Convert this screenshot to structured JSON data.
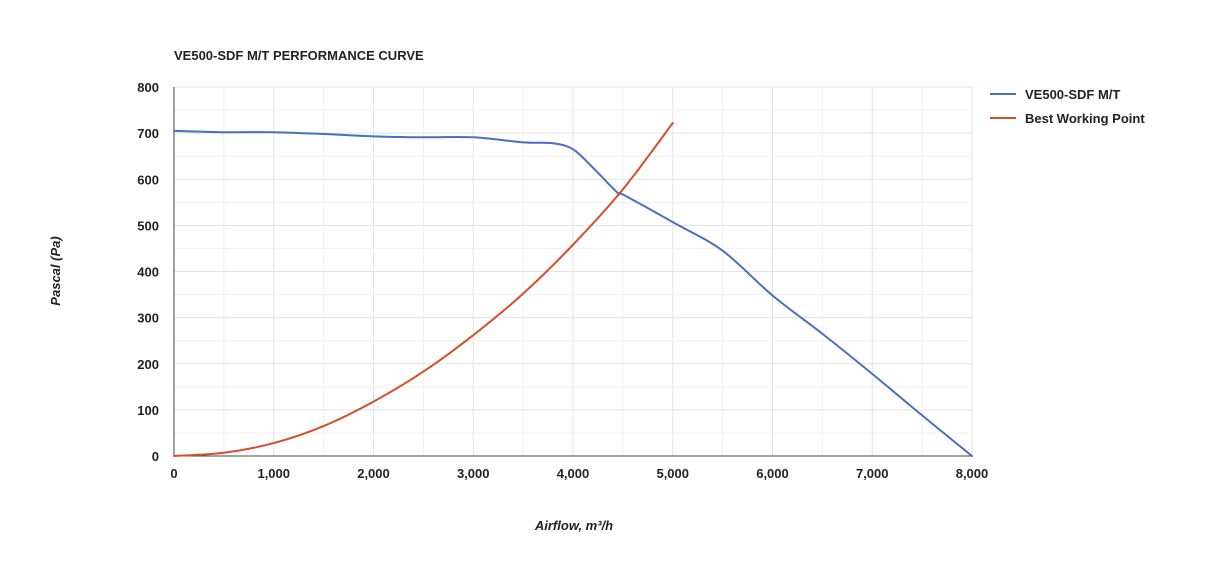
{
  "chart_data": {
    "type": "line",
    "title": "VE500-SDF M/T PERFORMANCE CURVE",
    "xlabel": "Airflow, m³/h",
    "ylabel": "Pascal (Pa)",
    "xlim": [
      0,
      8000
    ],
    "ylim": [
      0,
      800
    ],
    "x_ticks": [
      "0",
      "1,000",
      "2,000",
      "3,000",
      "4,000",
      "5,000",
      "6,000",
      "7,000",
      "8,000"
    ],
    "y_ticks": [
      "0",
      "100",
      "200",
      "300",
      "400",
      "500",
      "600",
      "700",
      "800"
    ],
    "grid": true,
    "legend_position": "right",
    "series": [
      {
        "name": "VE500-SDF M/T",
        "color": "#4a6fc0",
        "x": [
          0,
          500,
          1000,
          1500,
          2000,
          2500,
          3000,
          3500,
          3800,
          4000,
          4200,
          4450,
          4500,
          5000,
          5500,
          6000,
          6500,
          7000,
          7500,
          8000
        ],
        "y": [
          705,
          702,
          702,
          698,
          693,
          691,
          691,
          680,
          678,
          665,
          625,
          570,
          567,
          507,
          445,
          348,
          265,
          178,
          88,
          0
        ]
      },
      {
        "name": "Best Working Point",
        "color": "#d5502a",
        "x": [
          0,
          500,
          1000,
          1500,
          2000,
          2500,
          3000,
          3500,
          4000,
          4500,
          5000
        ],
        "y": [
          0,
          7,
          28,
          65,
          118,
          183,
          262,
          352,
          458,
          578,
          722
        ]
      }
    ]
  }
}
